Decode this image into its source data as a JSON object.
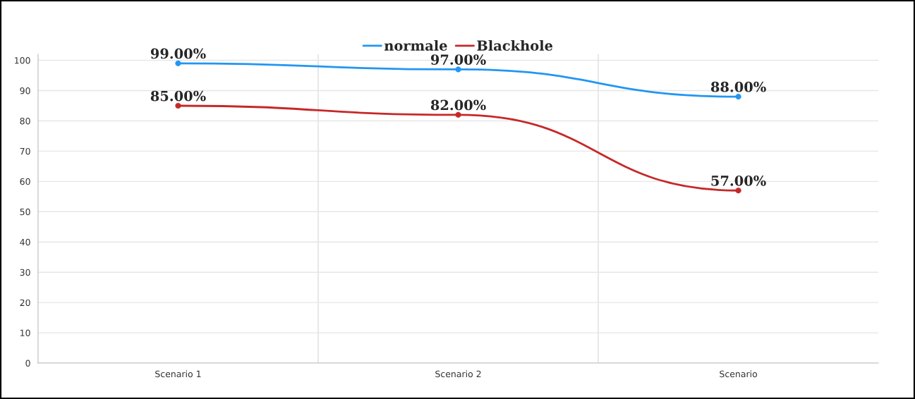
{
  "chart_data": {
    "type": "line",
    "categories": [
      "Scenario 1",
      "Scenario 2",
      "Scenario"
    ],
    "series": [
      {
        "name": "normale",
        "color": "#2196f3",
        "values": [
          99,
          97,
          88
        ],
        "value_labels": [
          "99.00%",
          "97.00%",
          "88.00%"
        ]
      },
      {
        "name": "Blackhole",
        "color": "#c62828",
        "values": [
          85,
          82,
          57
        ],
        "value_labels": [
          "85.00%",
          "82.00%",
          "57.00%"
        ]
      }
    ],
    "ylim": [
      0,
      102
    ],
    "yticks": [
      0,
      10,
      20,
      30,
      40,
      50,
      60,
      70,
      80,
      90,
      100
    ],
    "grid": true,
    "legend": "top",
    "marker": "circle",
    "line_style": "solid"
  }
}
